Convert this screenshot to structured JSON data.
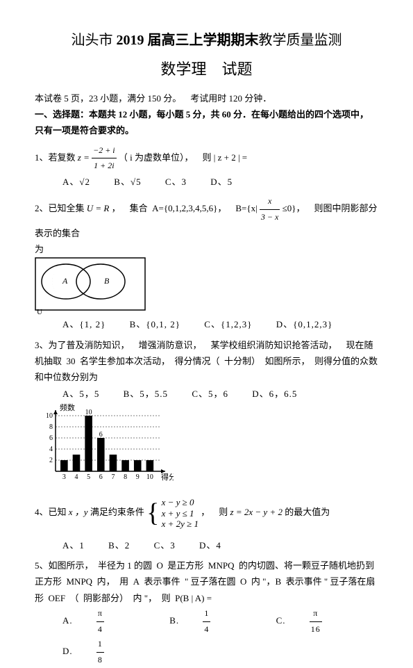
{
  "header": {
    "title1_pre": "汕头市 ",
    "title1_year": "2019",
    "title1_post": " 届高三上学期期末",
    "title1_end": "教学质量监测",
    "title2": "数学理 试题"
  },
  "intro": "本试卷 5 页，23 小题，满分 150 分。 考试用时 120 分钟．",
  "section1": "一、选择题：本题共 12 小题，每小题 5 分，共 60 分．在每小题给出的四个选项中， 只有一项是符合要求的。",
  "q1": {
    "label": "1、若复数 ",
    "eq_lhs": "z = ",
    "num": "−2 + i",
    "den": "1 + 2i",
    "tail": "（ i 为虚数单位）， 则 | z + 2 | =",
    "A": "A、√2",
    "B": "B、√5",
    "C": "C、3",
    "D": "D、5"
  },
  "q2": {
    "text_a": "2、已知全集 ",
    "U": "U = R",
    "text_b": " ， 集合 A={0,1,2,3,4,5,6}， B={x| ",
    "frac_n": "x",
    "frac_d": "3 − x",
    "text_c": " ≤0}， 则图中阴影部分表示的集合",
    "text_d": "为",
    "A": "A、{1, 2}",
    "B": "B、{0,1, 2}",
    "C": "C、{1,2,3}",
    "D": "D、{0,1,2,3}"
  },
  "q3": {
    "text": "3、为了普及消防知识， 增强消防意识， 某学校组织消防知识抢答活动， 现在随机抽取 30 名学生参加本次活动， 得分情况（ 十分制） 如图所示， 则得分值的众数和中位数分别为",
    "A": "A、5，5",
    "B": "B、5，5.5",
    "C": "C、5，6",
    "D": "D、6，6.5"
  },
  "chart": {
    "ylabel": "频数",
    "xlabel": "得分",
    "xticks": [
      "3",
      "4",
      "5",
      "6",
      "7",
      "8",
      "9",
      "10"
    ],
    "values": [
      2,
      3,
      10,
      6,
      3,
      2,
      2,
      2
    ],
    "value_labels": [
      null,
      null,
      "10",
      "6",
      null,
      null,
      null,
      null
    ],
    "yticks": [
      "10",
      "8",
      "6",
      "4",
      "2"
    ],
    "bar_color": "#000000"
  },
  "q4": {
    "text_a": "4、已知 ",
    "vars": "x ，y",
    "text_b": " 满足约束条件 ",
    "l1": "x − y ≥ 0",
    "l2": "x + y ≤ 1",
    "l3": "x + 2y ≥ 1",
    "text_c": " ， 则 ",
    "obj": "z = 2x − y + 2",
    "text_d": " 的最大值为",
    "A": "A、1",
    "B": "B、2",
    "C": "C、3",
    "D": "D、4"
  },
  "q5": {
    "text": "5、如图所示， 半径为 1 的圆 O 是正方形 MNPQ 的内切圆、将一颗豆子随机地扔到正方形 MNPQ 内， 用 A 表示事件 \" 豆子落在圆 O 内 \"，B 表示事件 \" 豆子落在扇形 OEF （ 阴影部分） 内 \"， 则 P(B | A) =",
    "A_pre": "A.",
    "A_n": "π",
    "A_d": "4",
    "B_pre": "B.",
    "B_n": "1",
    "B_d": "4",
    "C_pre": "C.",
    "C_n": "π",
    "C_d": "16",
    "D_pre": "D.",
    "D_n": "1",
    "D_d": "8"
  }
}
